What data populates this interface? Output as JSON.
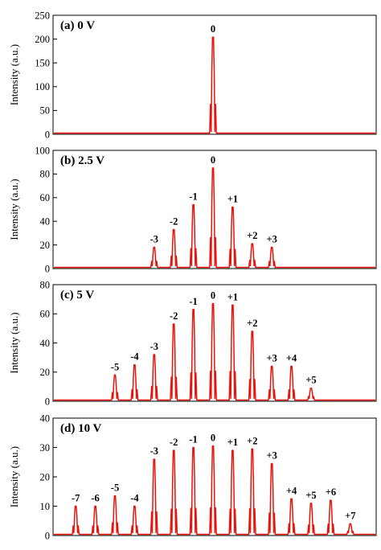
{
  "chart_data": [
    {
      "type": "line",
      "title": "(a) 0 V",
      "xlabel": "",
      "ylabel": "Intensity (a.u.)",
      "ylim": [
        0,
        250
      ],
      "yticks": [
        "0",
        "50",
        "100",
        "150",
        "200",
        "250"
      ],
      "grid": false,
      "color": "#e8140c",
      "peaks": [
        {
          "label": "0",
          "x": 0,
          "value": 204
        }
      ]
    },
    {
      "type": "line",
      "title": "(b) 2.5 V",
      "xlabel": "",
      "ylabel": "Intensity (a.u.)",
      "ylim": [
        0,
        100
      ],
      "yticks": [
        "0",
        "20",
        "40",
        "60",
        "80",
        "100"
      ],
      "grid": false,
      "color": "#e8140c",
      "peaks": [
        {
          "label": "-3",
          "x": -3,
          "value": 18
        },
        {
          "label": "-2",
          "x": -2,
          "value": 33
        },
        {
          "label": "-1",
          "x": -1,
          "value": 54
        },
        {
          "label": "0",
          "x": 0,
          "value": 85
        },
        {
          "label": "+1",
          "x": 1,
          "value": 52
        },
        {
          "label": "+2",
          "x": 2,
          "value": 21
        },
        {
          "label": "+3",
          "x": 3,
          "value": 18
        }
      ]
    },
    {
      "type": "line",
      "title": "(c) 5 V",
      "xlabel": "",
      "ylabel": "Intensity (a.u.)",
      "ylim": [
        0,
        80
      ],
      "yticks": [
        "0",
        "20",
        "40",
        "60",
        "80"
      ],
      "grid": false,
      "color": "#e8140c",
      "peaks": [
        {
          "label": "-5",
          "x": -5,
          "value": 18
        },
        {
          "label": "-4",
          "x": -4,
          "value": 25
        },
        {
          "label": "-3",
          "x": -3,
          "value": 32
        },
        {
          "label": "-2",
          "x": -2,
          "value": 53
        },
        {
          "label": "-1",
          "x": -1,
          "value": 63
        },
        {
          "label": "0",
          "x": 0,
          "value": 67
        },
        {
          "label": "+1",
          "x": 1,
          "value": 66
        },
        {
          "label": "+2",
          "x": 2,
          "value": 48
        },
        {
          "label": "+3",
          "x": 3,
          "value": 24
        },
        {
          "label": "+4",
          "x": 4,
          "value": 24
        },
        {
          "label": "+5",
          "x": 5,
          "value": 9
        }
      ]
    },
    {
      "type": "line",
      "title": "(d) 10 V",
      "xlabel": "",
      "ylabel": "Intensity (a.u.)",
      "ylim": [
        0,
        40
      ],
      "yticks": [
        "0",
        "10",
        "20",
        "30",
        "40"
      ],
      "grid": false,
      "color": "#e8140c",
      "peaks": [
        {
          "label": "-7",
          "x": -7,
          "value": 10
        },
        {
          "label": "-6",
          "x": -6,
          "value": 10
        },
        {
          "label": "-5",
          "x": -5,
          "value": 13.5
        },
        {
          "label": "-4",
          "x": -4,
          "value": 10
        },
        {
          "label": "-3",
          "x": -3,
          "value": 26
        },
        {
          "label": "-2",
          "x": -2,
          "value": 29
        },
        {
          "label": "-1",
          "x": -1,
          "value": 30
        },
        {
          "label": "0",
          "x": 0,
          "value": 30.5
        },
        {
          "label": "+1",
          "x": 1,
          "value": 29
        },
        {
          "label": "+2",
          "x": 2,
          "value": 29.5
        },
        {
          "label": "+3",
          "x": 3,
          "value": 24.5
        },
        {
          "label": "+4",
          "x": 4,
          "value": 12.5
        },
        {
          "label": "+5",
          "x": 5,
          "value": 11
        },
        {
          "label": "+6",
          "x": 6,
          "value": 12
        },
        {
          "label": "+7",
          "x": 7,
          "value": 4
        }
      ]
    }
  ]
}
